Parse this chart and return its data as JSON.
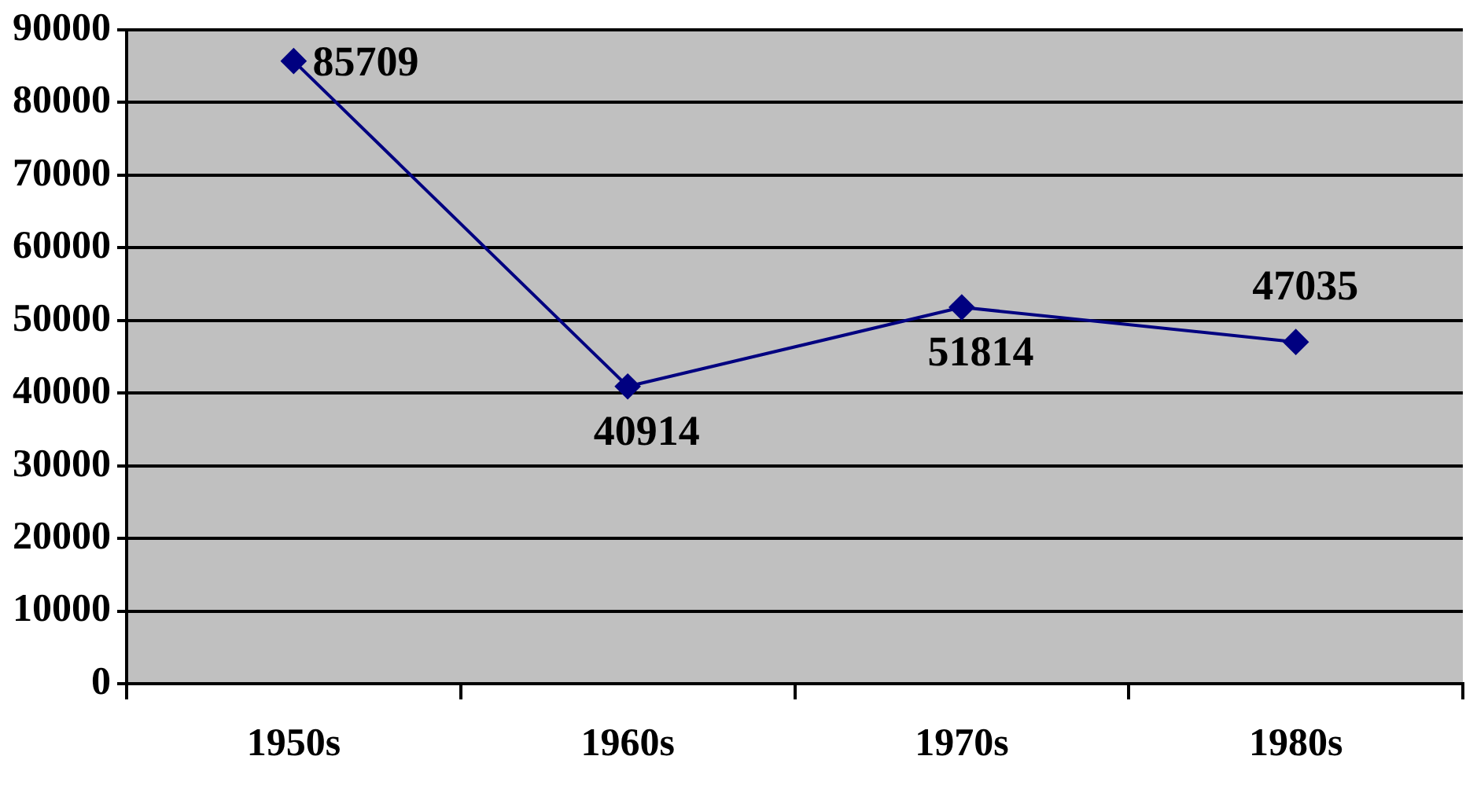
{
  "chart_data": {
    "type": "line",
    "categories": [
      "1950s",
      "1960s",
      "1970s",
      "1980s"
    ],
    "series": [
      {
        "color": "#000080",
        "values": [
          85709,
          40914,
          51814,
          47035
        ]
      }
    ],
    "ylim": [
      0,
      90000
    ],
    "yticks": [
      0,
      10000,
      20000,
      30000,
      40000,
      50000,
      60000,
      70000,
      80000,
      90000
    ],
    "grid": "y",
    "legend": false,
    "marker": "diamond",
    "line_style": "solid",
    "data_labels": true
  }
}
